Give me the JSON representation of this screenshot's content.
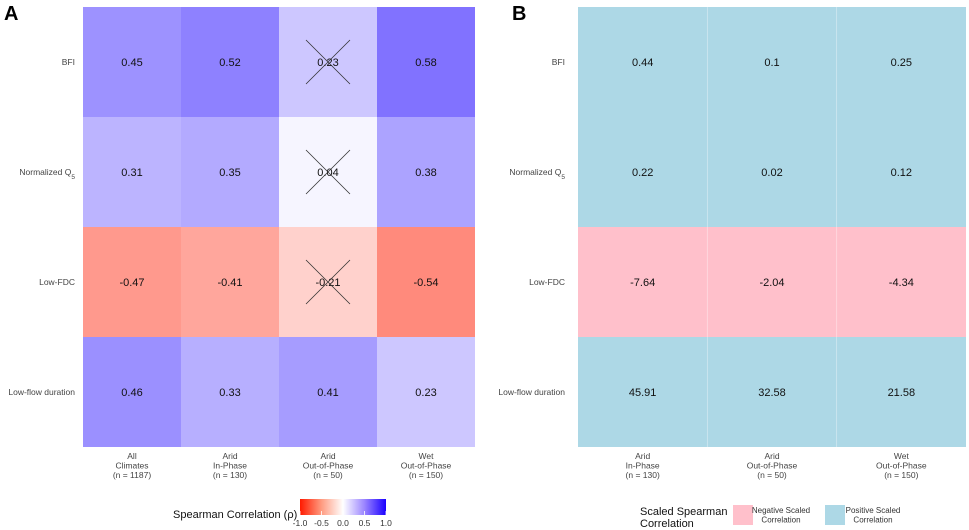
{
  "chart_data": [
    {
      "type": "heatmap",
      "panel": "A",
      "rows": [
        "BFI",
        "Normalized Q",
        "Low-FDC",
        "Low-flow duration"
      ],
      "row_subscripts": [
        "",
        "5",
        "",
        ""
      ],
      "columns": [
        [
          "All",
          "Climates",
          "(n = 1187)"
        ],
        [
          "Arid",
          "In-Phase",
          "(n = 130)"
        ],
        [
          "Arid",
          "Out-of-Phase",
          "(n = 50)"
        ],
        [
          "Wet",
          "Out-of-Phase",
          "(n = 150)"
        ]
      ],
      "values": [
        [
          0.45,
          0.52,
          0.23,
          0.58
        ],
        [
          0.31,
          0.35,
          0.04,
          0.38
        ],
        [
          -0.47,
          -0.41,
          -0.21,
          -0.54
        ],
        [
          0.46,
          0.33,
          0.41,
          0.23
        ]
      ],
      "labels": [
        [
          "0.45",
          "0.52",
          "0.23",
          "0.58"
        ],
        [
          "0.31",
          "0.35",
          "0.04",
          "0.38"
        ],
        [
          "-0.47",
          "-0.41",
          "-0.21",
          "-0.54"
        ],
        [
          "0.46",
          "0.33",
          "0.41",
          "0.23"
        ]
      ],
      "crossed": [
        [
          false,
          false,
          true,
          false
        ],
        [
          false,
          false,
          true,
          false
        ],
        [
          false,
          false,
          true,
          false
        ],
        [
          false,
          false,
          false,
          false
        ]
      ],
      "legend": {
        "title": "Spearman Correlation (ρ)",
        "ticks": [
          "-1.0",
          "-0.5",
          "0.0",
          "0.5",
          "1.0"
        ],
        "range": [
          -1,
          1
        ],
        "low_color": "#ff1a00",
        "mid_color": "#ffffff",
        "high_color": "#1a00ff"
      }
    },
    {
      "type": "heatmap",
      "panel": "B",
      "rows": [
        "BFI",
        "Normalized Q",
        "Low-FDC",
        "Low-flow duration"
      ],
      "row_subscripts": [
        "",
        "5",
        "",
        ""
      ],
      "columns": [
        [
          "Arid",
          "In-Phase",
          "(n = 130)"
        ],
        [
          "Arid",
          "Out-of-Phase",
          "(n = 50)"
        ],
        [
          "Wet",
          "Out-of-Phase",
          "(n = 150)"
        ]
      ],
      "values": [
        [
          0.44,
          0.1,
          0.25
        ],
        [
          0.22,
          0.02,
          0.12
        ],
        [
          -7.64,
          -2.04,
          -4.34
        ],
        [
          45.91,
          32.58,
          21.58
        ]
      ],
      "labels": [
        [
          "0.44",
          "0.1",
          "0.25"
        ],
        [
          "0.22",
          "0.02",
          "0.12"
        ],
        [
          "-7.64",
          "-2.04",
          "-4.34"
        ],
        [
          "45.91",
          "32.58",
          "21.58"
        ]
      ],
      "legend": {
        "title": [
          "Scaled Spearman",
          "Correlation"
        ],
        "items": [
          {
            "label": [
              "Negative Scaled",
              "Correlation"
            ],
            "color": "#ffc0cb"
          },
          {
            "label": [
              "Positive Scaled",
              "Correlation"
            ],
            "color": "#add8e6"
          }
        ]
      }
    }
  ]
}
